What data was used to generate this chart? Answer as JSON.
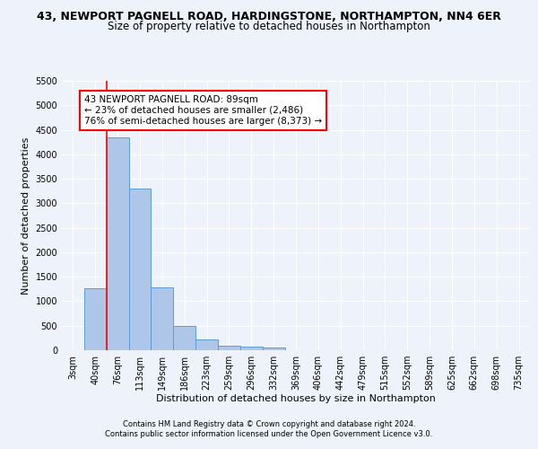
{
  "title_line1": "43, NEWPORT PAGNELL ROAD, HARDINGSTONE, NORTHAMPTON, NN4 6ER",
  "title_line2": "Size of property relative to detached houses in Northampton",
  "xlabel": "Distribution of detached houses by size in Northampton",
  "ylabel": "Number of detached properties",
  "footer_line1": "Contains HM Land Registry data © Crown copyright and database right 2024.",
  "footer_line2": "Contains public sector information licensed under the Open Government Licence v3.0.",
  "annotation_line1": "43 NEWPORT PAGNELL ROAD: 89sqm",
  "annotation_line2": "← 23% of detached houses are smaller (2,486)",
  "annotation_line3": "76% of semi-detached houses are larger (8,373) →",
  "bar_labels": [
    "3sqm",
    "40sqm",
    "76sqm",
    "113sqm",
    "149sqm",
    "186sqm",
    "223sqm",
    "259sqm",
    "296sqm",
    "332sqm",
    "369sqm",
    "406sqm",
    "442sqm",
    "479sqm",
    "515sqm",
    "552sqm",
    "589sqm",
    "625sqm",
    "662sqm",
    "698sqm",
    "735sqm"
  ],
  "bar_values": [
    0,
    1270,
    4340,
    3300,
    1280,
    490,
    220,
    100,
    70,
    60,
    0,
    0,
    0,
    0,
    0,
    0,
    0,
    0,
    0,
    0,
    0
  ],
  "bar_color": "#aec6e8",
  "bar_edge_color": "#5b9bd5",
  "vline_x_idx": 2,
  "vline_color": "red",
  "ylim": [
    0,
    5500
  ],
  "yticks": [
    0,
    500,
    1000,
    1500,
    2000,
    2500,
    3000,
    3500,
    4000,
    4500,
    5000,
    5500
  ],
  "background_color": "#eef3fb",
  "grid_color": "#ffffff",
  "title_fontsize": 9,
  "subtitle_fontsize": 8.5,
  "annotation_fontsize": 7.5,
  "axis_fontsize": 7,
  "ylabel_fontsize": 8,
  "xlabel_fontsize": 8,
  "footer_fontsize": 6
}
